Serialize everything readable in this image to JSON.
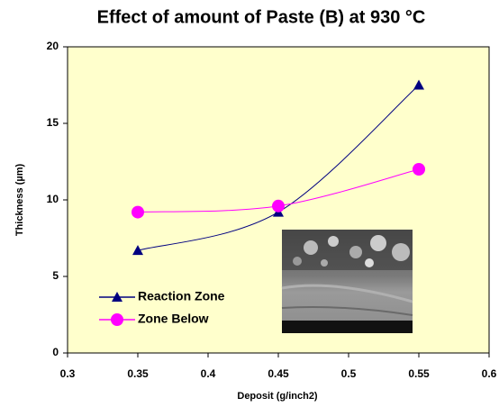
{
  "chart_data": {
    "type": "line",
    "title": "Effect of amount of Paste (B) at  930 °C",
    "x_label": "Deposit (g/inch2)",
    "y_label": "Thickness (µm)",
    "x": [
      0.35,
      0.45,
      0.55
    ],
    "series": [
      {
        "name": "Reaction Zone",
        "color": "#000080",
        "marker": "triangle",
        "values": [
          6.7,
          9.2,
          17.5
        ]
      },
      {
        "name": "Zone Below",
        "color": "#ff00ff",
        "marker": "circle",
        "values": [
          9.2,
          9.6,
          12.0
        ]
      }
    ],
    "xlim": [
      0.3,
      0.6
    ],
    "xticks": [
      0.3,
      0.35,
      0.4,
      0.45,
      0.5,
      0.55,
      0.6
    ],
    "ylim": [
      0,
      20
    ],
    "yticks": [
      0,
      5,
      10,
      15,
      20
    ],
    "legend": "lower left",
    "smooth": true,
    "plot_background": "#ffffcc"
  }
}
